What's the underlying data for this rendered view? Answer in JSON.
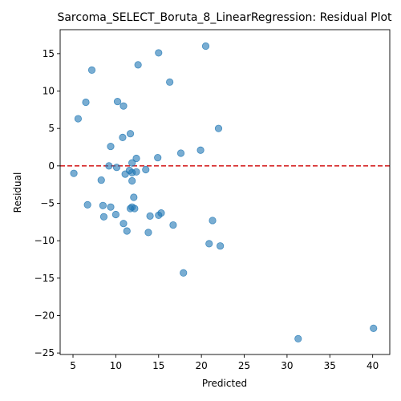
{
  "chart_data": {
    "type": "scatter",
    "title": "Sarcoma_SELECT_Boruta_8_LinearRegression: Residual Plot",
    "xlabel": "Predicted",
    "ylabel": "Residual",
    "xlim": [
      3.5,
      42
    ],
    "ylim": [
      -25.2,
      18.2
    ],
    "xticks": [
      5,
      10,
      15,
      20,
      25,
      30,
      35,
      40
    ],
    "yticks": [
      -25,
      -20,
      -15,
      -10,
      -5,
      0,
      5,
      10,
      15
    ],
    "xtick_labels": [
      "5",
      "10",
      "15",
      "20",
      "25",
      "30",
      "35",
      "40"
    ],
    "ytick_labels": [
      "−25",
      "−20",
      "−15",
      "−10",
      "−5",
      "0",
      "5",
      "10",
      "15"
    ],
    "reference_line": {
      "y": 0,
      "style": "dashed",
      "color": "#d62728"
    },
    "point_color": "#1f77b4",
    "grid": false,
    "points": [
      {
        "x": 20.5,
        "y": 16.0
      },
      {
        "x": 15.0,
        "y": 15.1
      },
      {
        "x": 12.6,
        "y": 13.5
      },
      {
        "x": 7.2,
        "y": 12.8
      },
      {
        "x": 16.3,
        "y": 11.2
      },
      {
        "x": 6.5,
        "y": 8.5
      },
      {
        "x": 10.2,
        "y": 8.6
      },
      {
        "x": 10.9,
        "y": 8.0
      },
      {
        "x": 5.6,
        "y": 6.3
      },
      {
        "x": 22.0,
        "y": 5.0
      },
      {
        "x": 11.7,
        "y": 4.3
      },
      {
        "x": 10.8,
        "y": 3.8
      },
      {
        "x": 9.4,
        "y": 2.6
      },
      {
        "x": 19.9,
        "y": 2.1
      },
      {
        "x": 17.6,
        "y": 1.7
      },
      {
        "x": 14.9,
        "y": 1.1
      },
      {
        "x": 12.4,
        "y": 1.0
      },
      {
        "x": 11.9,
        "y": 0.4
      },
      {
        "x": 9.2,
        "y": 0.0
      },
      {
        "x": 10.1,
        "y": -0.2
      },
      {
        "x": 13.5,
        "y": -0.5
      },
      {
        "x": 11.6,
        "y": -0.6
      },
      {
        "x": 11.9,
        "y": -0.9
      },
      {
        "x": 12.4,
        "y": -0.8
      },
      {
        "x": 11.1,
        "y": -1.1
      },
      {
        "x": 5.1,
        "y": -1.0
      },
      {
        "x": 8.3,
        "y": -1.9
      },
      {
        "x": 11.9,
        "y": -2.0
      },
      {
        "x": 12.1,
        "y": -4.2
      },
      {
        "x": 6.7,
        "y": -5.2
      },
      {
        "x": 8.5,
        "y": -5.3
      },
      {
        "x": 9.4,
        "y": -5.5
      },
      {
        "x": 11.9,
        "y": -5.5
      },
      {
        "x": 11.7,
        "y": -5.7
      },
      {
        "x": 12.2,
        "y": -5.7
      },
      {
        "x": 15.3,
        "y": -6.3
      },
      {
        "x": 15.0,
        "y": -6.6
      },
      {
        "x": 10.0,
        "y": -6.5
      },
      {
        "x": 14.0,
        "y": -6.7
      },
      {
        "x": 8.6,
        "y": -6.8
      },
      {
        "x": 21.3,
        "y": -7.3
      },
      {
        "x": 10.9,
        "y": -7.7
      },
      {
        "x": 16.7,
        "y": -7.9
      },
      {
        "x": 11.3,
        "y": -8.7
      },
      {
        "x": 13.8,
        "y": -8.9
      },
      {
        "x": 20.9,
        "y": -10.4
      },
      {
        "x": 22.2,
        "y": -10.7
      },
      {
        "x": 17.9,
        "y": -14.3
      },
      {
        "x": 40.1,
        "y": -21.7
      },
      {
        "x": 31.3,
        "y": -23.1
      }
    ]
  }
}
